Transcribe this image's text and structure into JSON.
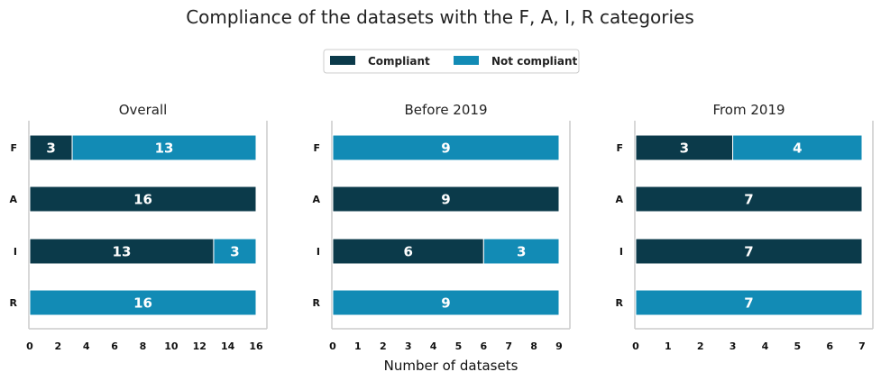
{
  "title": "Compliance of the datasets with the F, A, I, R categories",
  "xlabel": "Number of datasets",
  "colors": {
    "compliant": "#0b3a4a",
    "not_compliant": "#128bb5"
  },
  "legend": {
    "items": [
      "Compliant",
      "Not compliant"
    ],
    "position": "top-center"
  },
  "chart_data": [
    {
      "type": "bar",
      "orientation": "horizontal",
      "stacked": true,
      "title": "Overall",
      "categories": [
        "F",
        "A",
        "I",
        "R"
      ],
      "series": [
        {
          "name": "Compliant",
          "values": [
            3,
            16,
            13,
            0
          ]
        },
        {
          "name": "Not compliant",
          "values": [
            13,
            0,
            3,
            16
          ]
        }
      ],
      "xlim": [
        0,
        16
      ],
      "xticks": [
        "0",
        "2",
        "4",
        "6",
        "8",
        "10",
        "12",
        "14",
        "16"
      ]
    },
    {
      "type": "bar",
      "orientation": "horizontal",
      "stacked": true,
      "title": "Before 2019",
      "categories": [
        "F",
        "A",
        "I",
        "R"
      ],
      "series": [
        {
          "name": "Compliant",
          "values": [
            0,
            9,
            6,
            0
          ]
        },
        {
          "name": "Not compliant",
          "values": [
            9,
            0,
            3,
            9
          ]
        }
      ],
      "xlim": [
        0,
        9
      ],
      "xticks": [
        "0",
        "1",
        "2",
        "3",
        "4",
        "5",
        "6",
        "7",
        "8",
        "9"
      ]
    },
    {
      "type": "bar",
      "orientation": "horizontal",
      "stacked": true,
      "title": "From 2019",
      "categories": [
        "F",
        "A",
        "I",
        "R"
      ],
      "series": [
        {
          "name": "Compliant",
          "values": [
            3,
            7,
            7,
            0
          ]
        },
        {
          "name": "Not compliant",
          "values": [
            4,
            0,
            0,
            7
          ]
        }
      ],
      "xlim": [
        0,
        7
      ],
      "xticks": [
        "0",
        "1",
        "2",
        "3",
        "4",
        "5",
        "6",
        "7"
      ]
    }
  ]
}
